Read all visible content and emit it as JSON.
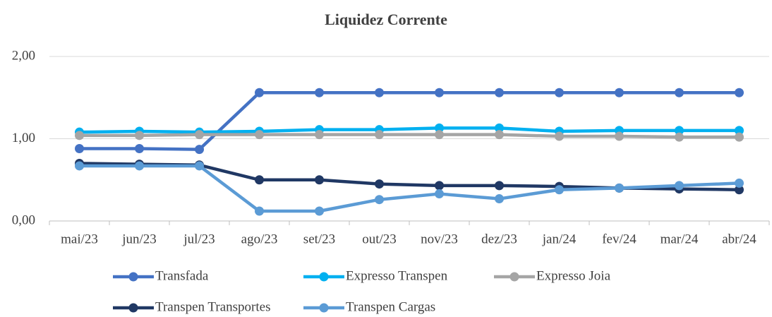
{
  "chart_data": {
    "type": "line",
    "title": "Liquidez Corrente",
    "categories": [
      "mai/23",
      "jun/23",
      "jul/23",
      "ago/23",
      "set/23",
      "out/23",
      "nov/23",
      "dez/23",
      "jan/24",
      "fev/24",
      "mar/24",
      "abr/24"
    ],
    "series": [
      {
        "name": "Transfada",
        "color": "#4472c4",
        "values": [
          0.88,
          0.88,
          0.87,
          1.56,
          1.56,
          1.56,
          1.56,
          1.56,
          1.56,
          1.56,
          1.56,
          1.56
        ]
      },
      {
        "name": "Expresso Transpen",
        "color": "#00b0f0",
        "values": [
          1.08,
          1.09,
          1.08,
          1.09,
          1.11,
          1.11,
          1.13,
          1.13,
          1.09,
          1.1,
          1.1,
          1.1
        ]
      },
      {
        "name": "Expresso Joia",
        "color": "#a5a5a5",
        "values": [
          1.04,
          1.04,
          1.05,
          1.05,
          1.05,
          1.05,
          1.05,
          1.05,
          1.03,
          1.03,
          1.02,
          1.02
        ]
      },
      {
        "name": "Transpen Transportes",
        "color": "#203864",
        "values": [
          0.7,
          0.69,
          0.68,
          0.5,
          0.5,
          0.45,
          0.43,
          0.43,
          0.42,
          0.4,
          0.39,
          0.38
        ]
      },
      {
        "name": "Transpen Cargas",
        "color": "#5b9bd5",
        "values": [
          0.67,
          0.67,
          0.67,
          0.12,
          0.12,
          0.26,
          0.33,
          0.27,
          0.38,
          0.4,
          0.43,
          0.46
        ]
      }
    ],
    "ylim": [
      0,
      2
    ],
    "yticks": [
      {
        "value": 0,
        "label": "0,00"
      },
      {
        "value": 1,
        "label": "1,00"
      },
      {
        "value": 2,
        "label": "2,00"
      }
    ],
    "grid": true
  }
}
